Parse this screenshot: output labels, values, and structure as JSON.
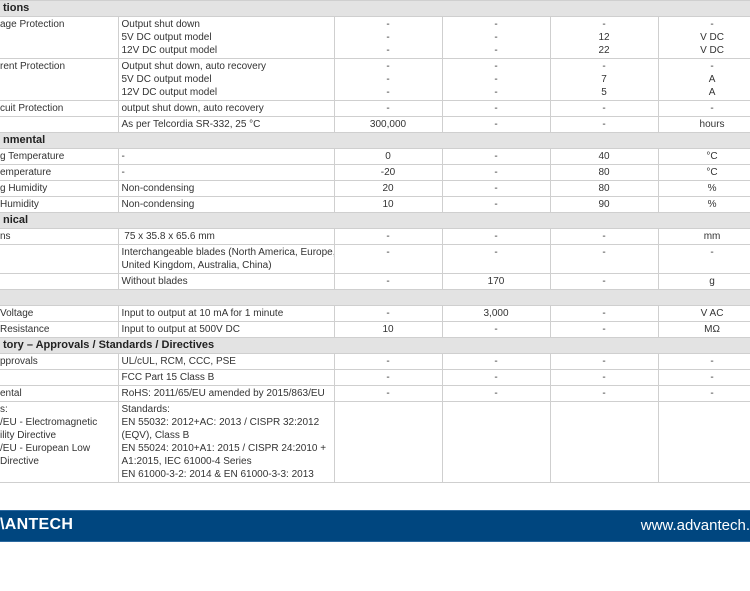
{
  "sections": [
    {
      "title": "tions",
      "rows": [
        {
          "cells": [
            "age Protection",
            "Output shut down\n5V DC output model\n12V DC output model",
            "-\n-\n-",
            "-\n-\n-",
            "-\n12\n22",
            "-\nV DC\nV DC"
          ]
        },
        {
          "cells": [
            "rent Protection",
            "Output shut down, auto recovery\n5V DC output model\n12V DC output model",
            "-\n-\n-",
            "-\n-\n-",
            "-\n7\n5",
            "-\nA\nA"
          ]
        },
        {
          "cells": [
            "cuit Protection",
            "output shut down, auto recovery",
            "-",
            "-",
            "-",
            "-"
          ]
        },
        {
          "cells": [
            "",
            "As per Telcordia SR-332, 25 °C",
            "300,000",
            "-",
            "-",
            "hours"
          ]
        }
      ]
    },
    {
      "title": "nmental",
      "rows": [
        {
          "cells": [
            "g Temperature",
            "-",
            "0",
            "-",
            "40",
            "°C"
          ]
        },
        {
          "cells": [
            "emperature",
            "-",
            "-20",
            "-",
            "80",
            "°C"
          ]
        },
        {
          "cells": [
            "g Humidity",
            "Non-condensing",
            "20",
            "-",
            "80",
            "%"
          ]
        },
        {
          "cells": [
            "Humidity",
            "Non-condensing",
            "10",
            "-",
            "90",
            "%"
          ]
        }
      ]
    },
    {
      "title": "nical",
      "rows": [
        {
          "cells": [
            "ns",
            " 75 x 35.8 x 65.6 mm",
            "-",
            "-",
            "-",
            "mm"
          ]
        },
        {
          "cells": [
            "",
            "Interchangeable blades (North America, Europe,\nUnited Kingdom, Australia, China)",
            "-",
            "-",
            "-",
            "-"
          ]
        },
        {
          "cells": [
            "",
            "Without blades",
            "-",
            "170",
            "-",
            "g"
          ]
        }
      ]
    },
    {
      "title": "",
      "rows": [
        {
          "cells": [
            "Voltage",
            "Input to output at 10 mA for 1 minute",
            "-",
            "3,000",
            "-",
            "V AC"
          ]
        },
        {
          "cells": [
            "Resistance",
            "Input to output at 500V DC",
            "10",
            "-",
            "-",
            "MΩ"
          ]
        }
      ]
    },
    {
      "title": "tory – Approvals / Standards / Directives",
      "rows": [
        {
          "cells": [
            "pprovals",
            "UL/cUL, RCM, CCC, PSE",
            "-",
            "-",
            "-",
            "-"
          ]
        },
        {
          "cells": [
            "",
            "FCC Part 15 Class B",
            "-",
            "-",
            "-",
            "-"
          ]
        },
        {
          "cells": [
            "ental",
            "RoHS: 2011/65/EU amended by 2015/863/EU",
            "-",
            "-",
            "-",
            "-"
          ]
        },
        {
          "cells": [
            "s:\n/EU - Electromagnetic\nility Directive\n/EU - European Low\nDirective",
            "Standards:\nEN 55032: 2012+AC: 2013 / CISPR 32:2012\n(EQV), Class B\nEN 55024: 2010+A1: 2015 / CISPR 24:2010 +\nA1:2015, IEC 61000-4 Series\nEN 61000-3-2: 2014 & EN 61000-3-3: 2013",
            "",
            "",
            "",
            ""
          ]
        }
      ]
    }
  ],
  "footer": {
    "logo": "\\ANTECH",
    "url": "www.advantech.",
    "color": "#00467f"
  }
}
